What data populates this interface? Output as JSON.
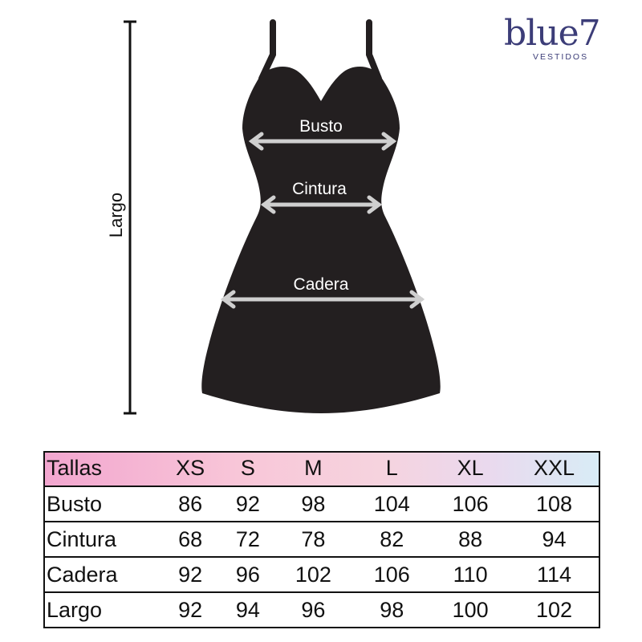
{
  "brand": {
    "name": "blue7",
    "tagline": "VESTIDOS",
    "color": "#3c3d78"
  },
  "diagram": {
    "length_label": "Largo",
    "measurements": [
      {
        "label": "Busto"
      },
      {
        "label": "Cintura"
      },
      {
        "label": "Cadera"
      }
    ],
    "colors": {
      "dress": "#231f20",
      "arrow": "#cfcfcf",
      "header_gradient": [
        "#f2a6cf",
        "#d8ecf6"
      ]
    }
  },
  "table": {
    "header": [
      "Tallas",
      "XS",
      "S",
      "M",
      "L",
      "XL",
      "XXL"
    ],
    "rows": [
      [
        "Busto",
        "86",
        "92",
        "98",
        "104",
        "106",
        "108"
      ],
      [
        "Cintura",
        "68",
        "72",
        "78",
        "82",
        "88",
        "94"
      ],
      [
        "Cadera",
        "92",
        "96",
        "102",
        "106",
        "110",
        "114"
      ],
      [
        "Largo",
        "92",
        "94",
        "96",
        "98",
        "100",
        "102"
      ]
    ]
  }
}
